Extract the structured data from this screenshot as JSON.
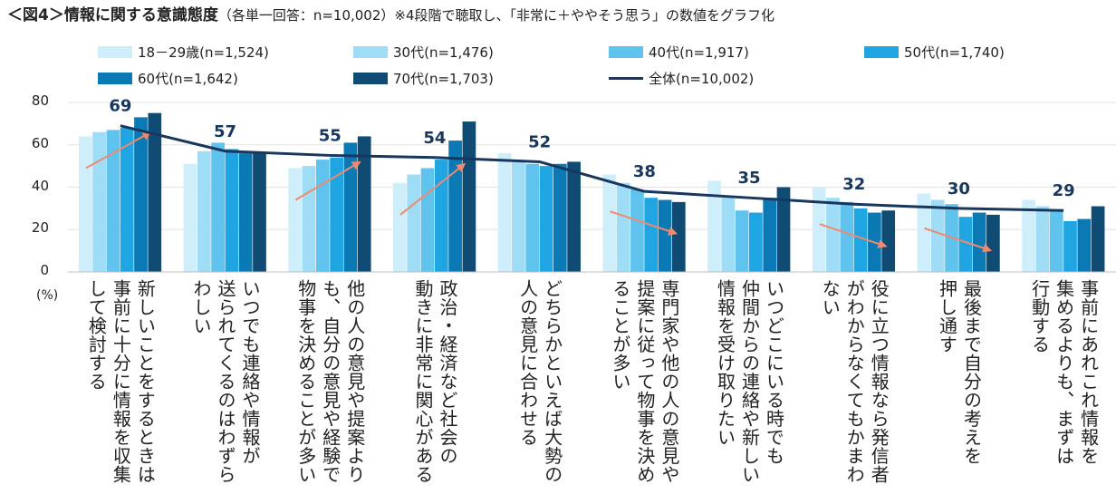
{
  "title_main": "＜図4＞情報に関する意識態度",
  "title_note": "（各単一回答：n=10,002）※4段階で聴取し、「非常に＋ややそう思う」の数値をグラフ化",
  "unit_label": "(%)",
  "colors": {
    "s18": "#cdeefa",
    "s30": "#9fdcf5",
    "s40": "#5fc3ee",
    "s50": "#1ea5e2",
    "s60": "#0b79b3",
    "s70": "#0f4b72",
    "total": "#17375e",
    "arrow": "#f08a6e"
  },
  "chart_data": {
    "type": "bar",
    "ylim": [
      0,
      80
    ],
    "yticks": [
      0,
      20,
      40,
      60,
      80
    ],
    "categories": [
      "新しいことをするときは\n事前に十分に情報を収集\nして検討する",
      "いつでも連絡や情報が\n送られてくるのはわずら\nわしい",
      "他の人の意見や提案より\nも、自分の意見や経験で\n物事を決めることが多い",
      "政治・経済など社会の\n動きに非常に関心がある",
      "どちらかといえば大勢の\n人の意見に合わせる",
      "専門家や他の人の意見や\n提案に従って物事を決め\nることが多い",
      "いつどこにいる時でも\n仲間からの連絡や新しい\n情報を受け取りたい",
      "役に立つ情報なら発信者\nがわからなくてもかまわ\nない",
      "最後まで自分の考えを\n押し通す",
      "事前にあれこれ情報を\n集めるよりも、まずは\n行動する"
    ],
    "series": [
      {
        "name": "18－29歳(n=1,524)",
        "color_key": "s18",
        "values": [
          64,
          51,
          49,
          42,
          56,
          46,
          43,
          40,
          37,
          34
        ]
      },
      {
        "name": "30代(n=1,476)",
        "color_key": "s30",
        "values": [
          66,
          57,
          50,
          46,
          52,
          42,
          36,
          35,
          34,
          31
        ]
      },
      {
        "name": "40代(n=1,917)",
        "color_key": "s40",
        "values": [
          67,
          61,
          53,
          49,
          51,
          39,
          29,
          33,
          32,
          29
        ]
      },
      {
        "name": "50代(n=1,740)",
        "color_key": "s50",
        "values": [
          68,
          58,
          54,
          53,
          50,
          35,
          28,
          30,
          26,
          24
        ]
      },
      {
        "name": "60代(n=1,642)",
        "color_key": "s60",
        "values": [
          73,
          56,
          61,
          62,
          51,
          34,
          35,
          28,
          28,
          25
        ]
      },
      {
        "name": "70代(n=1,703)",
        "color_key": "s70",
        "values": [
          75,
          56,
          64,
          71,
          52,
          33,
          40,
          29,
          27,
          31
        ]
      }
    ],
    "total": {
      "name": "全体(n=10,002)",
      "values": [
        69,
        57,
        55,
        54,
        52,
        38,
        35,
        32,
        30,
        29
      ]
    },
    "trend_arrows": [
      "up",
      "none",
      "up",
      "up",
      "none",
      "down",
      "none",
      "down",
      "down",
      "none"
    ]
  }
}
